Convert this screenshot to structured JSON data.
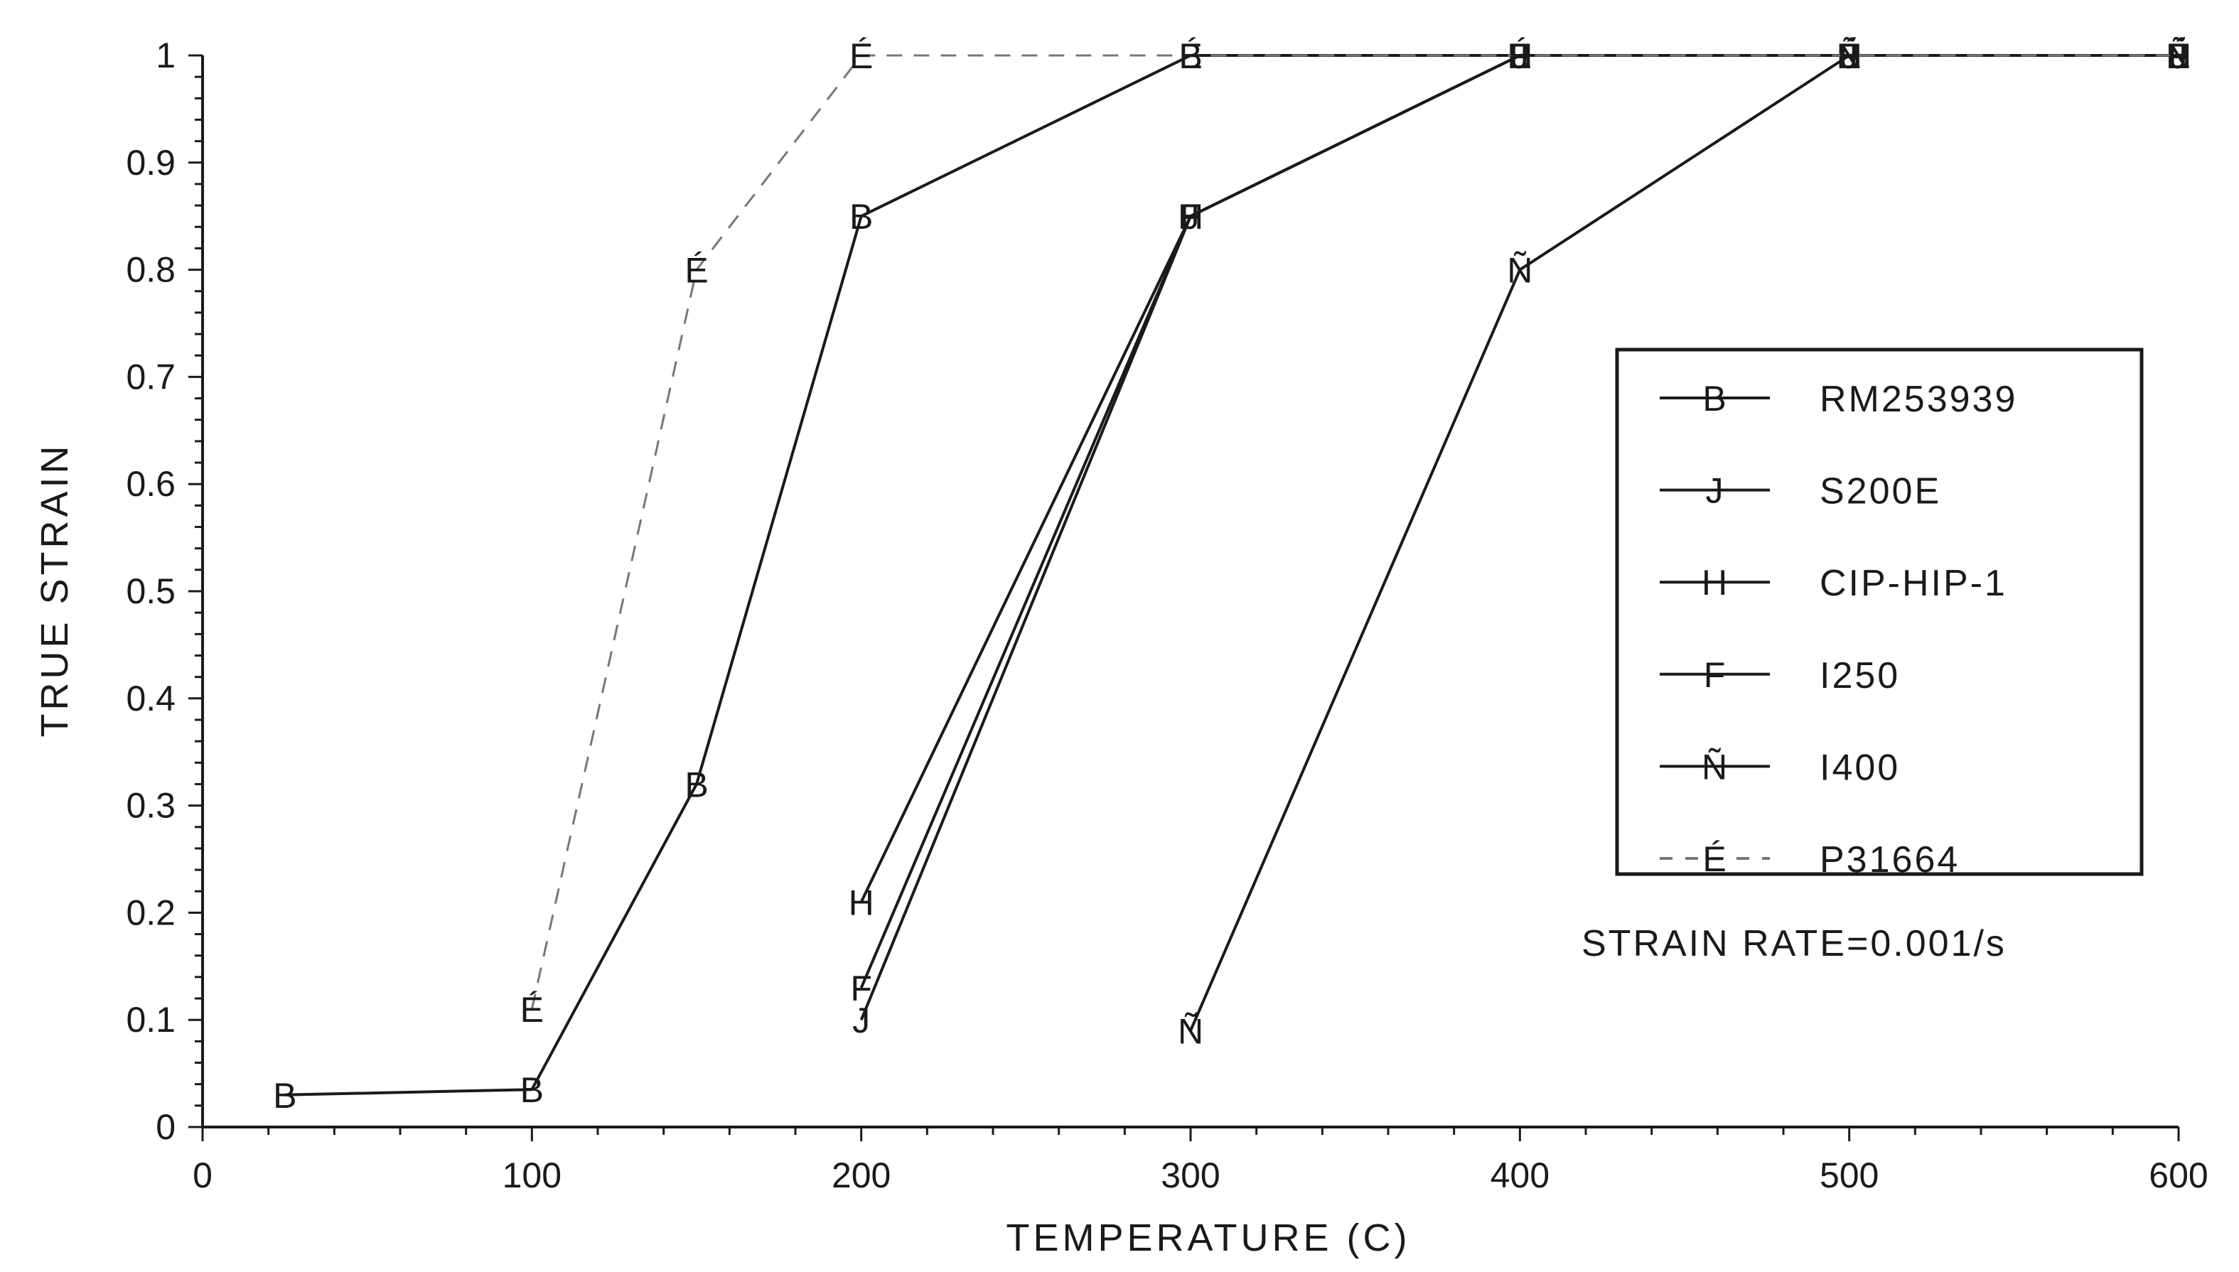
{
  "chart_data": {
    "type": "line",
    "title": "",
    "xlabel": "TEMPERATURE (C)",
    "ylabel": "TRUE STRAIN",
    "xlim": [
      0,
      600
    ],
    "ylim": [
      0,
      1
    ],
    "x_ticks": [
      "0",
      "100",
      "200",
      "300",
      "400",
      "500",
      "600"
    ],
    "y_ticks": [
      "0",
      "0.1",
      "0.2",
      "0.3",
      "0.4",
      "0.5",
      "0.6",
      "0.7",
      "0.8",
      "0.9",
      "1"
    ],
    "grid": false,
    "legend_position": "right",
    "annotation": "STRAIN RATE=0.001/s",
    "series": [
      {
        "name": "RM253939",
        "marker": "B",
        "line": "solid",
        "points": [
          [
            25,
            0.03
          ],
          [
            100,
            0.035
          ],
          [
            150,
            0.32
          ],
          [
            200,
            0.85
          ],
          [
            300,
            1.0
          ],
          [
            400,
            1.0
          ],
          [
            500,
            1.0
          ],
          [
            600,
            1.0
          ]
        ]
      },
      {
        "name": "S200E",
        "marker": "J",
        "line": "solid",
        "points": [
          [
            200,
            0.1
          ],
          [
            300,
            0.85
          ],
          [
            400,
            1.0
          ],
          [
            500,
            1.0
          ],
          [
            600,
            1.0
          ]
        ]
      },
      {
        "name": "CIP-HIP-1",
        "marker": "H",
        "line": "solid",
        "points": [
          [
            200,
            0.21
          ],
          [
            300,
            0.85
          ],
          [
            400,
            1.0
          ],
          [
            500,
            1.0
          ],
          [
            600,
            1.0
          ]
        ]
      },
      {
        "name": "I250",
        "marker": "F",
        "line": "solid",
        "points": [
          [
            200,
            0.13
          ],
          [
            300,
            0.85
          ],
          [
            400,
            1.0
          ],
          [
            500,
            1.0
          ],
          [
            600,
            1.0
          ]
        ]
      },
      {
        "name": "I400",
        "marker": "Ñ",
        "line": "solid",
        "points": [
          [
            300,
            0.09
          ],
          [
            400,
            0.8
          ],
          [
            500,
            1.0
          ],
          [
            600,
            1.0
          ]
        ]
      },
      {
        "name": "P31664",
        "marker": "É",
        "line": "dashed",
        "points": [
          [
            100,
            0.11
          ],
          [
            150,
            0.8
          ],
          [
            200,
            1.0
          ],
          [
            300,
            1.0
          ],
          [
            400,
            1.0
          ],
          [
            500,
            1.0
          ],
          [
            600,
            1.0
          ]
        ]
      }
    ]
  }
}
